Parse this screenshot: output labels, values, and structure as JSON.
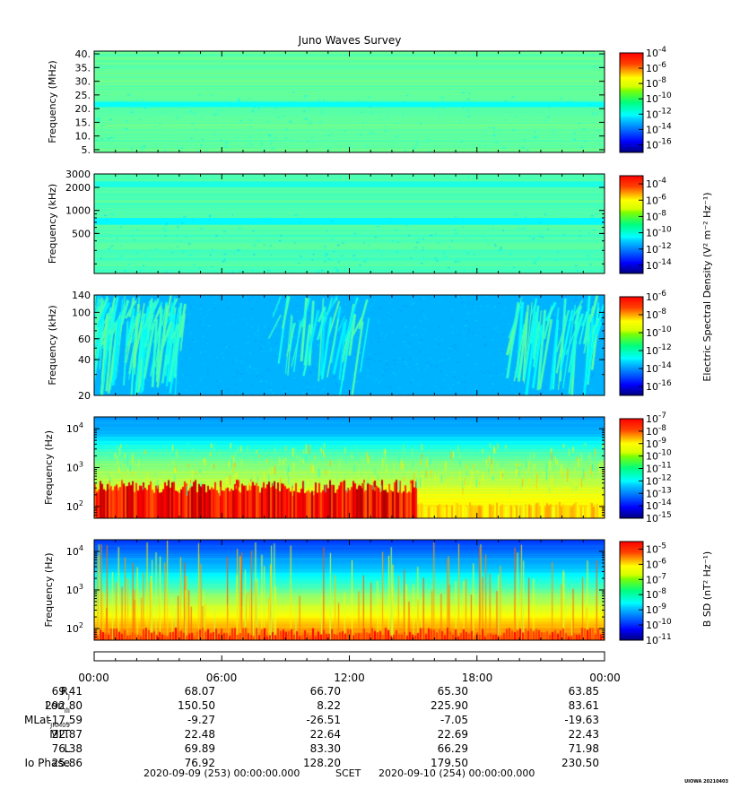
{
  "title": "Juno Waves Survey",
  "credit": "UIOWA 20210403",
  "chart_data": [
    {
      "type": "heatmap",
      "panel": "hfr-high",
      "ylabel": "Frequency (MHz)",
      "yscale": "linear",
      "ylim": [
        4,
        41
      ],
      "yticks": [
        {
          "v": 5,
          "label": "5."
        },
        {
          "v": 10,
          "label": "10."
        },
        {
          "v": 15,
          "label": "15."
        },
        {
          "v": 20,
          "label": "20."
        },
        {
          "v": 25,
          "label": "25."
        },
        {
          "v": 30,
          "label": "30."
        },
        {
          "v": 35,
          "label": "35."
        },
        {
          "v": 40,
          "label": "40."
        }
      ],
      "colorbar": {
        "min_exp": -17,
        "max_exp": -4,
        "labels": [
          -4,
          -6,
          -8,
          -10,
          -12,
          -14,
          -16
        ]
      },
      "bands": [
        {
          "lo": 20.5,
          "hi": 22.5,
          "level": 0.38
        }
      ],
      "background_level": 0.47,
      "base_bands": []
    },
    {
      "type": "heatmap",
      "panel": "hfr-low",
      "ylabel": "Frequency (kHz)",
      "yscale": "log",
      "ylim": [
        150,
        3000
      ],
      "yticks": [
        {
          "v": 500,
          "label": "500"
        },
        {
          "v": 1000,
          "label": "1000"
        },
        {
          "v": 2000,
          "label": "2000"
        },
        {
          "v": 3000,
          "label": "3000"
        }
      ],
      "colorbar": {
        "min_exp": -15,
        "max_exp": -3,
        "labels": [
          -4,
          -6,
          -8,
          -10,
          -12,
          -14
        ]
      },
      "bands": [
        {
          "lo": 2000,
          "hi": 2400,
          "level": 0.4
        },
        {
          "lo": 650,
          "hi": 800,
          "level": 0.37
        }
      ],
      "background_level": 0.45,
      "base_bands": []
    },
    {
      "type": "heatmap",
      "panel": "lfr-high",
      "ylabel": "Frequency (kHz)",
      "yscale": "log",
      "ylim": [
        20,
        140
      ],
      "yticks": [
        {
          "v": 20,
          "label": "20"
        },
        {
          "v": 40,
          "label": "40"
        },
        {
          "v": 60,
          "label": "60"
        },
        {
          "v": 100,
          "label": "100"
        },
        {
          "v": 140,
          "label": "140"
        }
      ],
      "colorbar": {
        "min_exp": -17,
        "max_exp": -6,
        "labels": [
          -6,
          -8,
          -10,
          -12,
          -14,
          -16
        ]
      },
      "bands": [],
      "background_level": 0.72,
      "base_bands": []
    },
    {
      "type": "heatmap",
      "panel": "lfr-low",
      "ylabel": "Frequency (Hz)",
      "yscale": "log",
      "ylim": [
        50,
        20000
      ],
      "yticks": [
        {
          "v": 100,
          "label": "10",
          "exp": "2"
        },
        {
          "v": 1000,
          "label": "10",
          "exp": "3"
        },
        {
          "v": 10000,
          "label": "10",
          "exp": "4"
        }
      ],
      "colorbar": {
        "min_exp": -15,
        "max_exp": -7,
        "labels": [
          -7,
          -8,
          -9,
          -10,
          -11,
          -12,
          -13,
          -14,
          -15
        ]
      },
      "bands": [],
      "background_level": 0.5,
      "base_bands": []
    },
    {
      "type": "heatmap",
      "panel": "magnetic",
      "ylabel": "Frequency (Hz)",
      "yscale": "log",
      "ylim": [
        50,
        20000
      ],
      "yticks": [
        {
          "v": 100,
          "label": "10",
          "exp": "2"
        },
        {
          "v": 1000,
          "label": "10",
          "exp": "3"
        },
        {
          "v": 10000,
          "label": "10",
          "exp": "4"
        }
      ],
      "colorbar": {
        "min_exp": -11,
        "max_exp": -4.5,
        "labels": [
          -5,
          -6,
          -7,
          -8,
          -9,
          -10,
          -11
        ]
      },
      "bands": [],
      "background_level": 0.5,
      "base_bands": []
    }
  ],
  "colorbar_titles": {
    "electric": "Electric Spectral Density (V² m⁻² Hz⁻¹)",
    "magnetic": "B SD (nT² Hz⁻¹)"
  },
  "time_axis": {
    "tick_labels": [
      "00:00",
      "06:00",
      "12:00",
      "18:00",
      "00:00"
    ]
  },
  "ephemeris": [
    {
      "name": "R",
      "sub": "J",
      "values": [
        "69.41",
        "68.07",
        "66.70",
        "65.30",
        "63.85"
      ]
    },
    {
      "name": "Lon",
      "sub": "III",
      "values": [
        "292.80",
        "150.50",
        "8.22",
        "225.90",
        "83.61"
      ]
    },
    {
      "name": "MLat",
      "sub": "JRM09",
      "values": [
        "-17.59",
        "-9.27",
        "-26.51",
        "-7.05",
        "-19.63"
      ]
    },
    {
      "name": "MLT",
      "sub": "",
      "values": [
        "22.87",
        "22.48",
        "22.64",
        "22.69",
        "22.43"
      ]
    },
    {
      "name": "L",
      "sub": "",
      "values": [
        "76.38",
        "69.89",
        "83.30",
        "66.29",
        "71.98"
      ]
    },
    {
      "name": "Io Phase",
      "sub": "",
      "values": [
        "25.86",
        "76.92",
        "128.20",
        "179.50",
        "230.50"
      ]
    }
  ],
  "footer": {
    "start": "2020-09-09 (253) 00:00:00.000",
    "center": "SCET",
    "end": "2020-09-10 (254) 00:00:00.000"
  }
}
